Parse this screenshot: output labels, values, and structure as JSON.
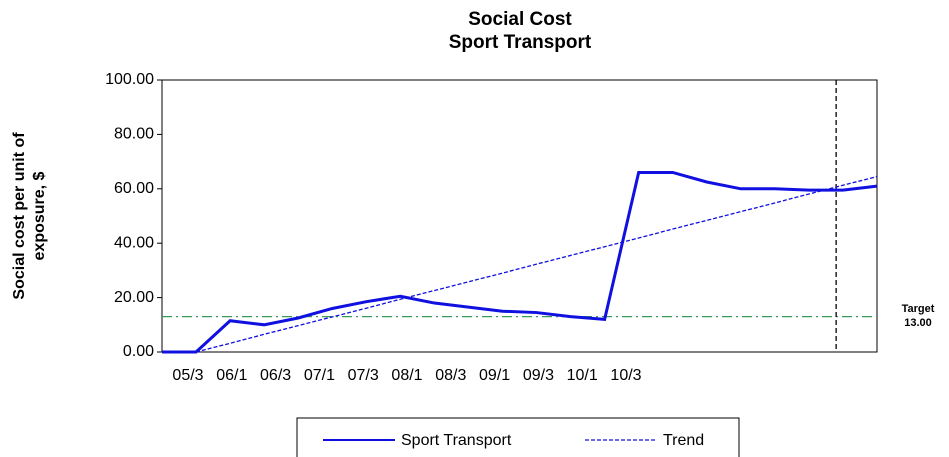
{
  "chart_data": {
    "type": "line",
    "title": "Social Cost",
    "subtitle": "Sport Transport",
    "y_label": [
      "Social cost per unit of",
      "exposure, $"
    ],
    "xtick_labels": [
      "05/3",
      "06/1",
      "06/3",
      "07/1",
      "07/3",
      "08/1",
      "08/3",
      "09/1",
      "09/3",
      "10/1",
      "10/3"
    ],
    "series": [
      {
        "name": "Sport Transport",
        "color": "#1010e0",
        "style": "solid",
        "values": [
          0,
          0,
          11.5,
          10,
          12.5,
          16,
          18.5,
          20.5,
          18,
          16.5,
          15,
          14.5,
          13,
          12,
          66,
          66,
          62.5,
          60,
          60,
          59.5,
          59.5,
          61
        ]
      },
      {
        "name": "Trend",
        "color": "#1010e0",
        "style": "dashed",
        "values": [
          null,
          0,
          3.2,
          6.5,
          9.7,
          12.9,
          16.1,
          19.4,
          22.6,
          25.8,
          29,
          32.3,
          35.5,
          38.7,
          41.9,
          45.2,
          48.4,
          51.6,
          54.8,
          58.1,
          61.3,
          64.5
        ]
      }
    ],
    "target": {
      "label": "Target",
      "value": 13,
      "value_label": "13.00",
      "color": "#3a9a5a"
    },
    "marker_index": 19.8,
    "ylim": [
      0,
      100
    ],
    "yticks": [
      {
        "value": 0,
        "label": "0.00"
      },
      {
        "value": 20,
        "label": "20.00"
      },
      {
        "value": 40,
        "label": "40.00"
      },
      {
        "value": 60,
        "label": "60.00"
      },
      {
        "value": 80,
        "label": "80.00"
      },
      {
        "value": 100,
        "label": "100.00"
      }
    ]
  }
}
